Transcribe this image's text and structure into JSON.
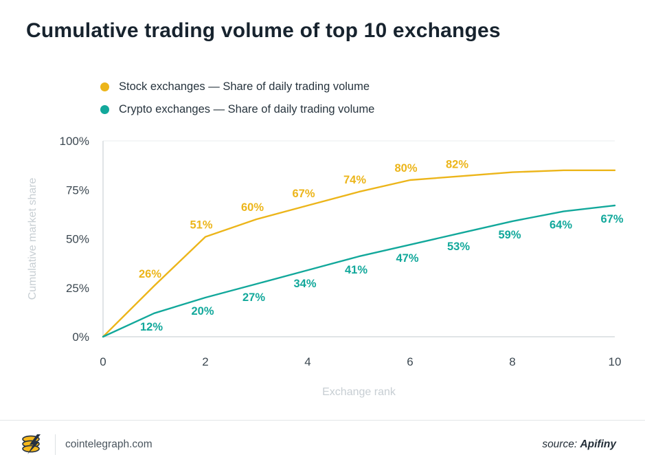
{
  "title": "Cumulative trading volume of top 10 exchanges",
  "legend": [
    {
      "label": "Stock exchanges — Share of daily trading volume",
      "color": "#ECB51A"
    },
    {
      "label": "Crypto exchanges — Share of daily trading volume",
      "color": "#12A89B"
    }
  ],
  "chart_data": {
    "type": "line",
    "title": "Cumulative trading volume of top 10 exchanges",
    "xlabel": "Exchange rank",
    "ylabel": "Cumulative market share",
    "xlim": [
      0,
      10
    ],
    "ylim": [
      0,
      100
    ],
    "grid": "top-line-only",
    "legend_position": "top-left",
    "x": [
      0,
      1,
      2,
      3,
      4,
      5,
      6,
      7,
      8,
      9,
      10
    ],
    "series": [
      {
        "name": "Stock exchanges",
        "color": "#ECB51A",
        "values": [
          0,
          26,
          51,
          60,
          67,
          74,
          80,
          82,
          84,
          85,
          85
        ],
        "labels": [
          "",
          "26%",
          "51%",
          "60%",
          "67%",
          "74%",
          "80%",
          "82%",
          "",
          "",
          ""
        ],
        "label_position": "above"
      },
      {
        "name": "Crypto exchanges",
        "color": "#12A89B",
        "values": [
          0,
          12,
          20,
          27,
          34,
          41,
          47,
          53,
          59,
          64,
          67
        ],
        "labels": [
          "",
          "12%",
          "20%",
          "27%",
          "34%",
          "41%",
          "47%",
          "53%",
          "59%",
          "64%",
          "67%"
        ],
        "label_position": "below"
      }
    ],
    "xticks": [
      {
        "value": 0,
        "label": "0"
      },
      {
        "value": 2,
        "label": "2"
      },
      {
        "value": 4,
        "label": "4"
      },
      {
        "value": 6,
        "label": "6"
      },
      {
        "value": 8,
        "label": "8"
      },
      {
        "value": 10,
        "label": "10"
      }
    ],
    "yticks": [
      {
        "value": 0,
        "label": "0%"
      },
      {
        "value": 25,
        "label": "25%"
      },
      {
        "value": 50,
        "label": "50%"
      },
      {
        "value": 75,
        "label": "75%"
      },
      {
        "value": 100,
        "label": "100%"
      }
    ]
  },
  "footer": {
    "site": "cointelegraph.com",
    "source_label": "source:",
    "source_name": "Apifiny"
  },
  "colors": {
    "axis": "#D5DBDE",
    "gridline": "#E9EDEF",
    "tick_text": "#3C4851",
    "axis_title_text": "#C7CED3",
    "title_text": "#17232E",
    "stock": "#ECB51A",
    "crypto": "#12A89B"
  }
}
